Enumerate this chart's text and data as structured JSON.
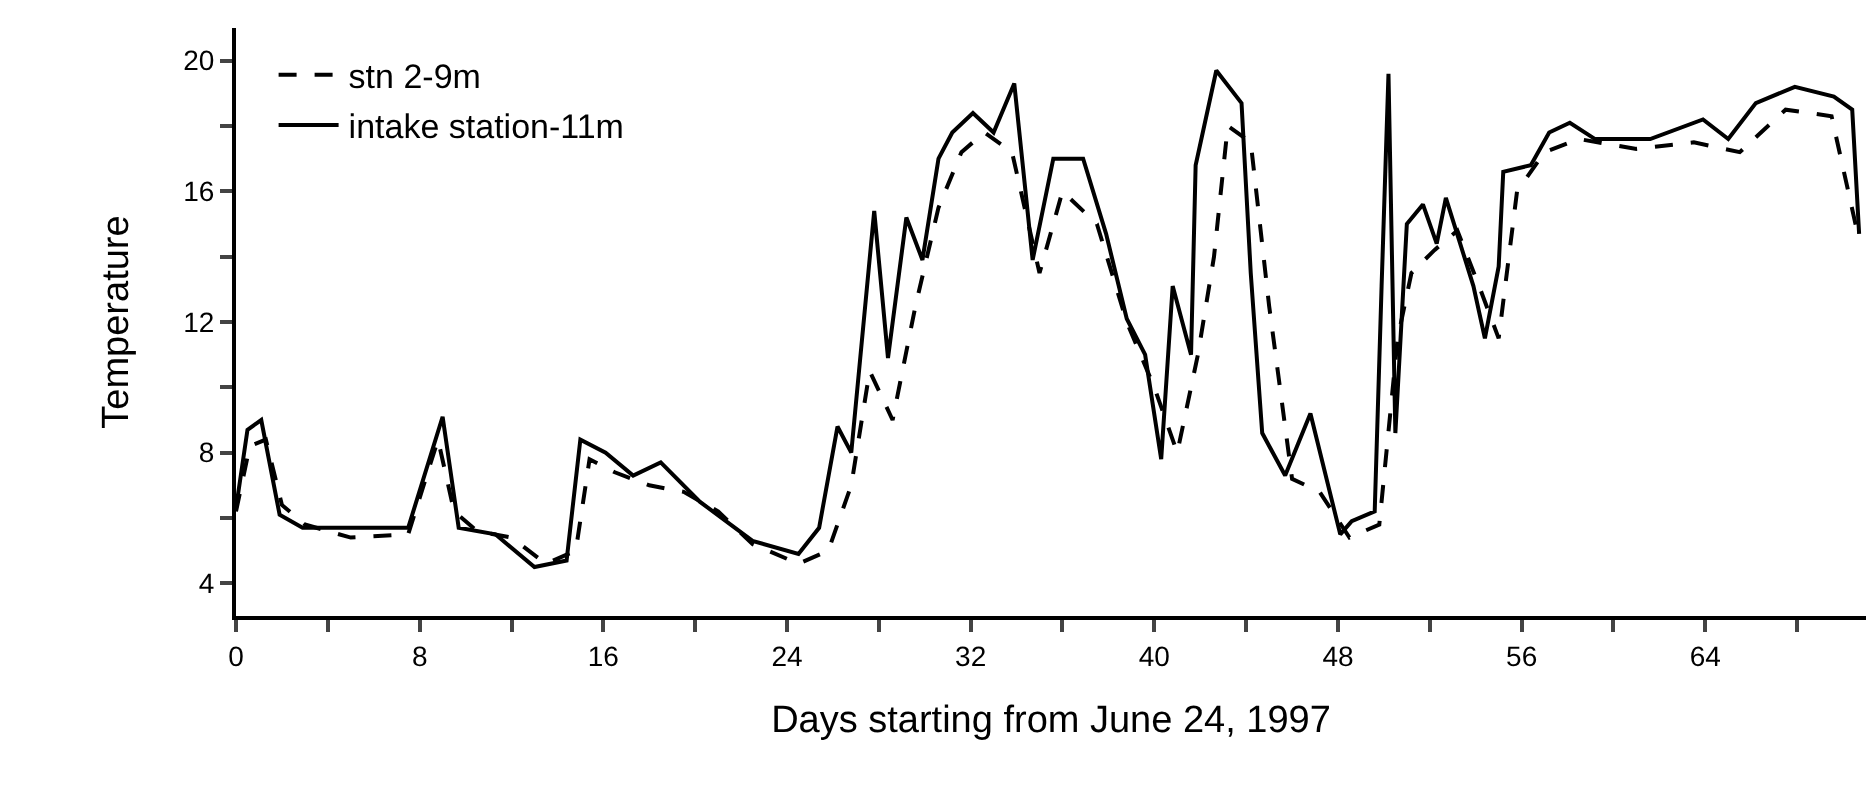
{
  "chart_data": {
    "type": "line",
    "xlabel": "Days starting from June 24, 1997",
    "ylabel": "Temperature",
    "xlim": [
      0,
      71
    ],
    "ylim": [
      3,
      21
    ],
    "xticks": [
      0,
      {
        "value": 4,
        "label": null
      },
      8,
      {
        "value": 12,
        "label": null
      },
      16,
      {
        "value": 20,
        "label": null
      },
      24,
      {
        "value": 28,
        "label": null
      },
      32,
      {
        "value": 36,
        "label": null
      },
      40,
      {
        "value": 44,
        "label": null
      },
      48,
      {
        "value": 52,
        "label": null
      },
      56,
      {
        "value": 60,
        "label": null
      },
      64,
      {
        "value": 68,
        "label": null
      }
    ],
    "yticks": [
      4,
      {
        "value": 6,
        "label": null
      },
      8,
      {
        "value": 10,
        "label": null
      },
      12,
      {
        "value": 14,
        "label": null
      },
      16,
      {
        "value": 18,
        "label": null
      },
      20
    ],
    "grid": false,
    "legend": "top left",
    "marker": "none",
    "series": [
      {
        "name": "stn 2-9m",
        "color": "#000000",
        "line_style": "dashed",
        "x": [
          0,
          0.6,
          1.3,
          2,
          3,
          5,
          7.5,
          8.8,
          9.5,
          10.5,
          12,
          13.5,
          14.8,
          15.4,
          16.5,
          18,
          19.5,
          21,
          22.5,
          24.5,
          25.8,
          26.8,
          27.6,
          28.6,
          29.6,
          30.6,
          31.6,
          32.6,
          33.8,
          35,
          36,
          37.5,
          38.8,
          40,
          41,
          41.9,
          42.6,
          43.2,
          44.2,
          45,
          46,
          47.2,
          48.5,
          49.8,
          50.6,
          51.2,
          52.2,
          53.2,
          54.2,
          55,
          55.8,
          57,
          58.5,
          61,
          63.5,
          65.5,
          67.5,
          69.5,
          70.7
        ],
        "values": [
          6.2,
          8.2,
          8.4,
          6.4,
          5.8,
          5.4,
          5.5,
          8.4,
          6.2,
          5.6,
          5.4,
          4.6,
          5,
          7.8,
          7.4,
          7,
          6.8,
          6.2,
          5.2,
          4.6,
          5,
          7,
          10.5,
          9,
          12.5,
          15.5,
          17.2,
          17.8,
          17.2,
          13.5,
          16,
          15,
          12,
          10,
          8,
          11,
          14,
          18,
          17.5,
          12.5,
          7.2,
          6.8,
          5.4,
          5.8,
          11.5,
          13.5,
          14.2,
          14.8,
          13,
          11.5,
          16,
          17.2,
          17.6,
          17.3,
          17.5,
          17.2,
          18.5,
          18.3,
          14.5
        ]
      },
      {
        "name": "intake station-11m",
        "color": "#000000",
        "line_style": "solid",
        "x": [
          0,
          0.5,
          1.1,
          1.9,
          2.9,
          5,
          7.5,
          9,
          9.7,
          11.3,
          13,
          14.4,
          15,
          16.1,
          17.3,
          18.5,
          20.2,
          22.5,
          24.5,
          25.4,
          26.2,
          26.8,
          27.8,
          28.4,
          29.2,
          29.9,
          30.6,
          31.2,
          32.1,
          33,
          33.9,
          34.7,
          35.6,
          36.9,
          37.9,
          38.8,
          39.6,
          40.3,
          40.8,
          41.6,
          41.8,
          42.7,
          43.8,
          44.2,
          44.7,
          45.7,
          46.8,
          48.1,
          48.6,
          49.6,
          49.9,
          50.2,
          50.5,
          51,
          51.7,
          52.3,
          52.7,
          53.9,
          54.4,
          55,
          55.2,
          56.4,
          57.2,
          58.1,
          59.2,
          61.6,
          63.9,
          65,
          66.2,
          67.9,
          69.6,
          70.4,
          70.7
        ],
        "values": [
          6.3,
          8.7,
          9,
          6.1,
          5.7,
          5.7,
          5.7,
          9.1,
          5.7,
          5.5,
          4.5,
          4.7,
          8.4,
          8,
          7.3,
          7.7,
          6.5,
          5.3,
          4.9,
          5.7,
          8.8,
          8,
          15.4,
          10.9,
          15.2,
          13.9,
          17,
          17.8,
          18.4,
          17.8,
          19.3,
          13.9,
          17,
          17,
          14.7,
          12.1,
          11,
          7.8,
          13.1,
          11,
          16.8,
          19.7,
          18.7,
          13.5,
          8.6,
          7.3,
          9.2,
          5.5,
          5.9,
          6.2,
          13.1,
          19.6,
          8.6,
          15,
          15.6,
          14.4,
          15.8,
          13.1,
          11.5,
          13.7,
          16.6,
          16.8,
          17.8,
          18.1,
          17.6,
          17.6,
          18.2,
          17.6,
          18.7,
          19.2,
          18.9,
          18.5,
          14.7
        ]
      }
    ]
  }
}
